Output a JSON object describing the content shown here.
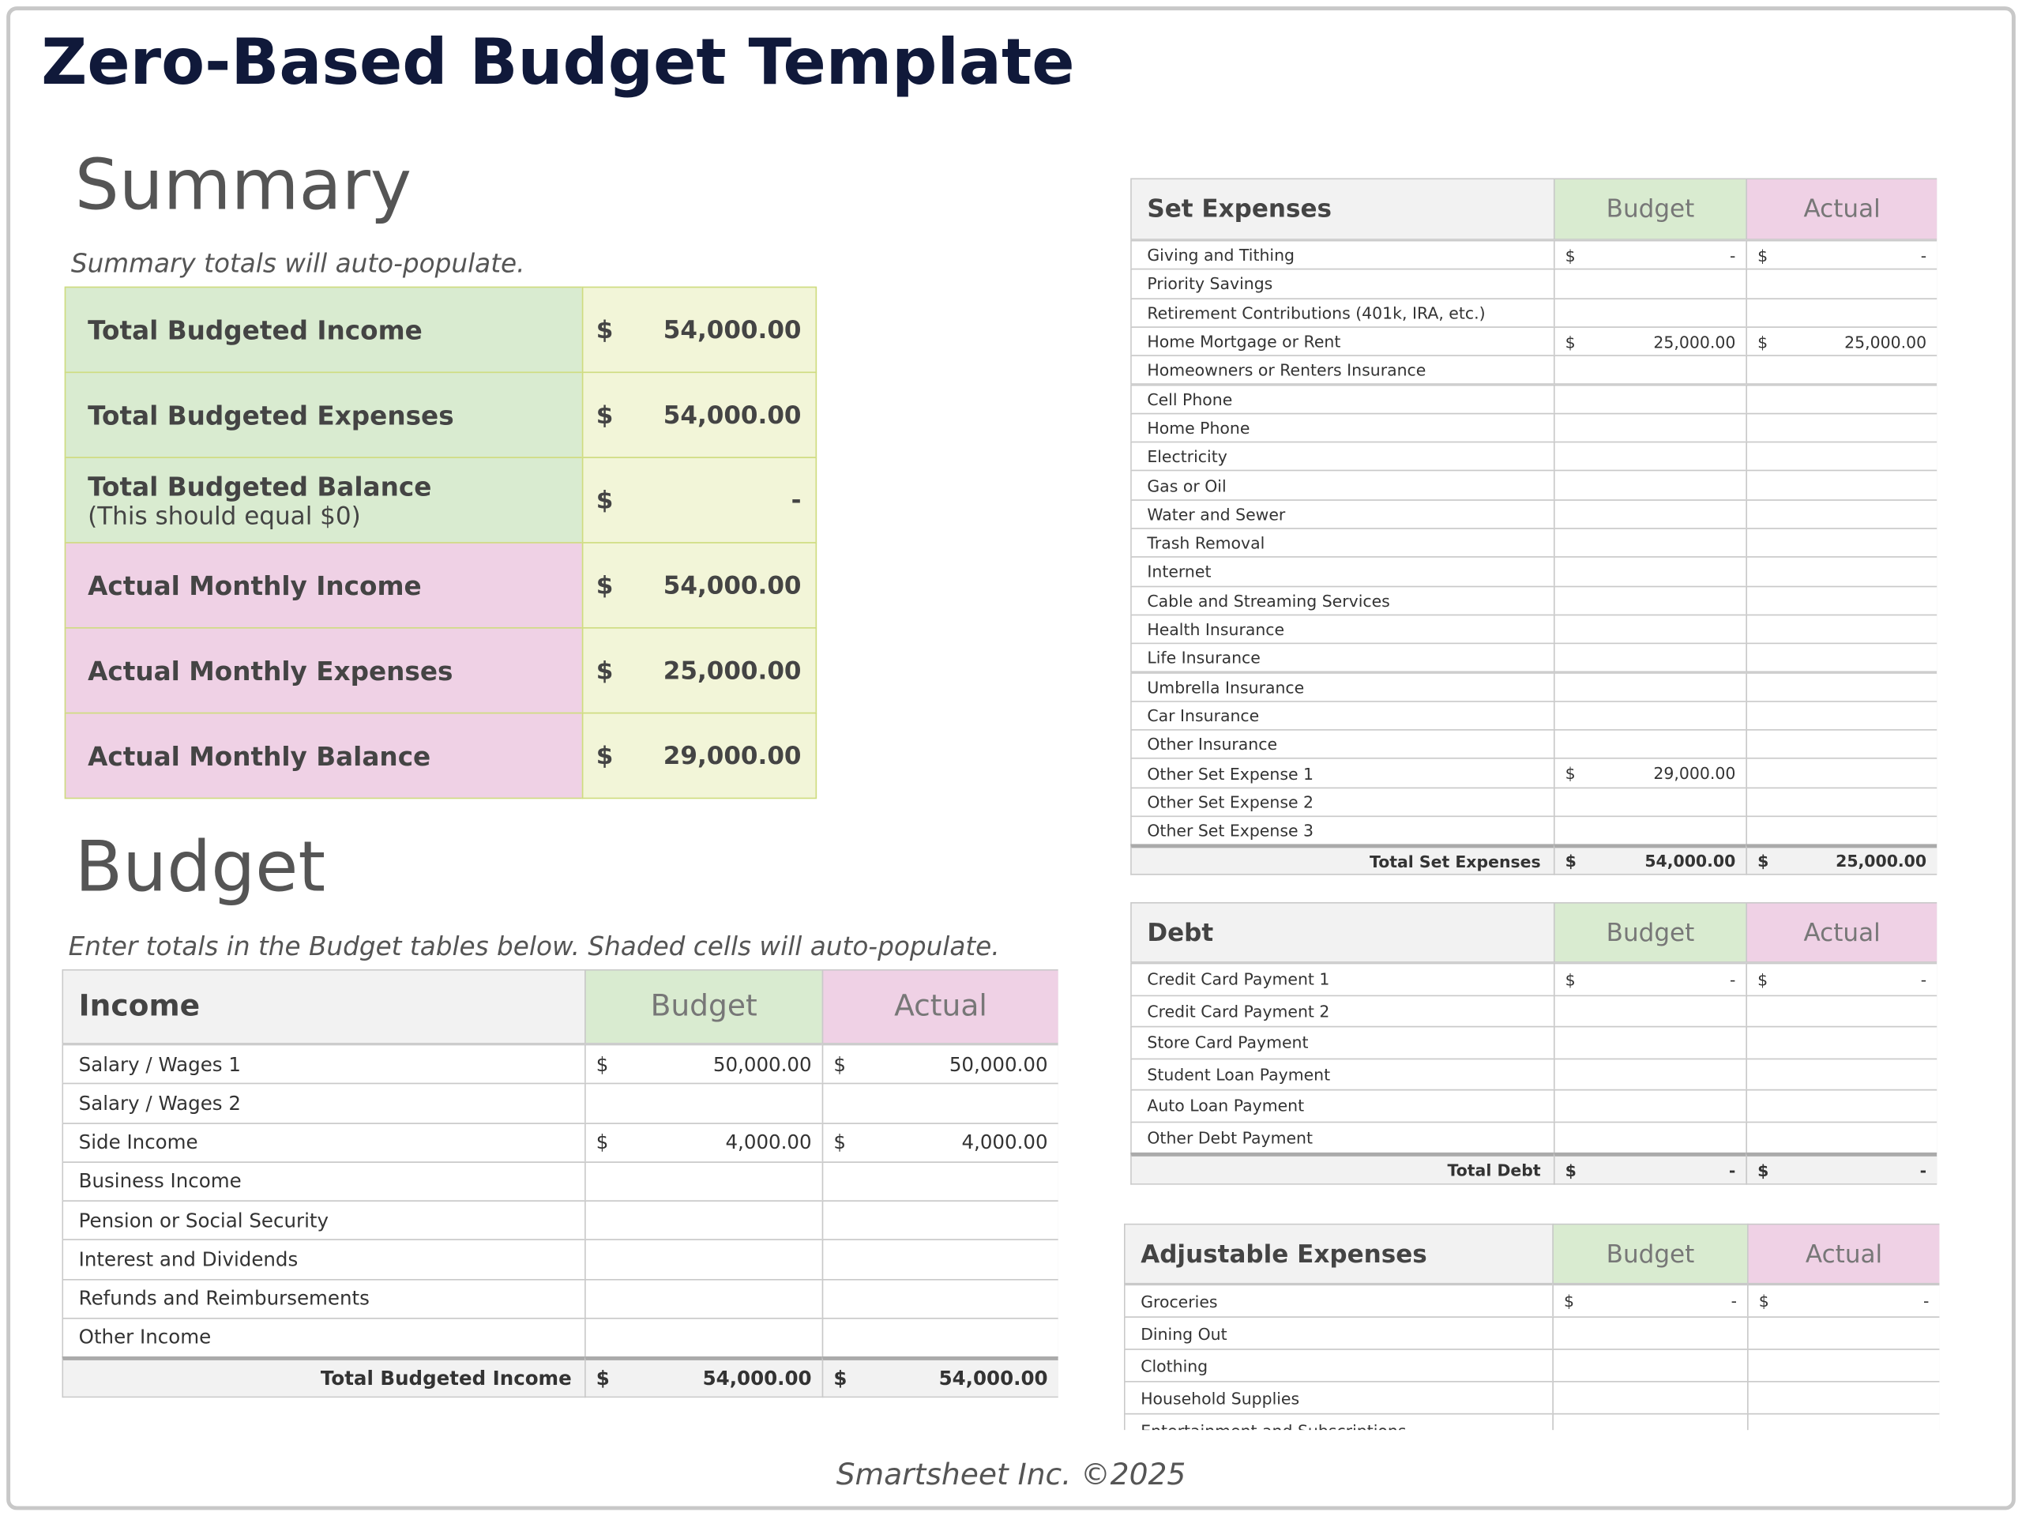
{
  "title": "Zero-Based Budget Template",
  "summary": {
    "heading": "Summary",
    "note": "Summary totals will auto-populate.",
    "rows": [
      {
        "label": "Total Budgeted Income",
        "currency": "$",
        "amount": "54,000.00"
      },
      {
        "label": "Total Budgeted Expenses",
        "currency": "$",
        "amount": "54,000.00"
      },
      {
        "label": "Total Budgeted Balance",
        "sublabel": "(This should equal $0)",
        "currency": "$",
        "amount": "-"
      },
      {
        "label": "Actual Monthly Income",
        "currency": "$",
        "amount": "54,000.00"
      },
      {
        "label": "Actual Monthly Expenses",
        "currency": "$",
        "amount": "25,000.00"
      },
      {
        "label": "Actual Monthly Balance",
        "currency": "$",
        "amount": "29,000.00"
      }
    ]
  },
  "budget": {
    "heading": "Budget",
    "note": "Enter totals in the Budget tables below. Shaded cells will auto-populate."
  },
  "income": {
    "header": [
      "Income",
      "Budget",
      "Actual"
    ],
    "rows": [
      {
        "label": "Salary / Wages 1",
        "budget": [
          "$",
          "50,000.00"
        ],
        "actual": [
          "$",
          "50,000.00"
        ]
      },
      {
        "label": "Salary / Wages 2"
      },
      {
        "label": "Side Income",
        "budget": [
          "$",
          "4,000.00"
        ],
        "actual": [
          "$",
          "4,000.00"
        ]
      },
      {
        "label": "Business Income"
      },
      {
        "label": "Pension or Social Security"
      },
      {
        "label": "Interest and Dividends"
      },
      {
        "label": "Refunds and Reimbursements"
      },
      {
        "label": "Other Income"
      }
    ],
    "total": {
      "label": "Total Budgeted Income",
      "budget": [
        "$",
        "54,000.00"
      ],
      "actual": [
        "$",
        "54,000.00"
      ]
    }
  },
  "set_expenses": {
    "header": [
      "Set Expenses",
      "Budget",
      "Actual"
    ],
    "rows": [
      {
        "label": "Giving and Tithing",
        "budget": [
          "$",
          "-"
        ],
        "actual": [
          "$",
          "-"
        ]
      },
      {
        "label": "Priority Savings"
      },
      {
        "label": "Retirement Contributions (401k, IRA, etc.)"
      },
      {
        "label": "Home Mortgage or Rent",
        "budget": [
          "$",
          "25,000.00"
        ],
        "actual": [
          "$",
          "25,000.00"
        ]
      },
      {
        "label": "Homeowners or Renters Insurance"
      },
      {
        "label": "Cell Phone"
      },
      {
        "label": "Home Phone"
      },
      {
        "label": "Electricity"
      },
      {
        "label": "Gas or Oil"
      },
      {
        "label": "Water and Sewer"
      },
      {
        "label": "Trash Removal"
      },
      {
        "label": "Internet"
      },
      {
        "label": "Cable and Streaming Services"
      },
      {
        "label": "Health Insurance"
      },
      {
        "label": "Life Insurance"
      },
      {
        "label": "Umbrella Insurance"
      },
      {
        "label": "Car Insurance"
      },
      {
        "label": "Other Insurance"
      },
      {
        "label": "Other Set Expense 1",
        "budget": [
          "$",
          "29,000.00"
        ]
      },
      {
        "label": "Other Set Expense 2"
      },
      {
        "label": "Other Set Expense 3"
      }
    ],
    "total": {
      "label": "Total Set Expenses",
      "budget": [
        "$",
        "54,000.00"
      ],
      "actual": [
        "$",
        "25,000.00"
      ]
    }
  },
  "debt": {
    "header": [
      "Debt",
      "Budget",
      "Actual"
    ],
    "rows": [
      {
        "label": "Credit Card Payment 1",
        "budget": [
          "$",
          "-"
        ],
        "actual": [
          "$",
          "-"
        ]
      },
      {
        "label": "Credit Card Payment 2"
      },
      {
        "label": "Store Card Payment"
      },
      {
        "label": "Student Loan Payment"
      },
      {
        "label": "Auto Loan Payment"
      },
      {
        "label": "Other Debt Payment"
      }
    ],
    "total": {
      "label": "Total Debt",
      "budget": [
        "$",
        "-"
      ],
      "actual": [
        "$",
        "-"
      ]
    }
  },
  "adjustable_expenses": {
    "header": [
      "Adjustable Expenses",
      "Budget",
      "Actual"
    ],
    "rows": [
      {
        "label": "Groceries",
        "budget": [
          "$",
          "-"
        ],
        "actual": [
          "$",
          "-"
        ]
      },
      {
        "label": "Dining Out"
      },
      {
        "label": "Clothing"
      },
      {
        "label": "Household Supplies"
      },
      {
        "label": "Entertainment and Subscriptions"
      }
    ]
  },
  "footer": "Smartsheet Inc. ©2025"
}
